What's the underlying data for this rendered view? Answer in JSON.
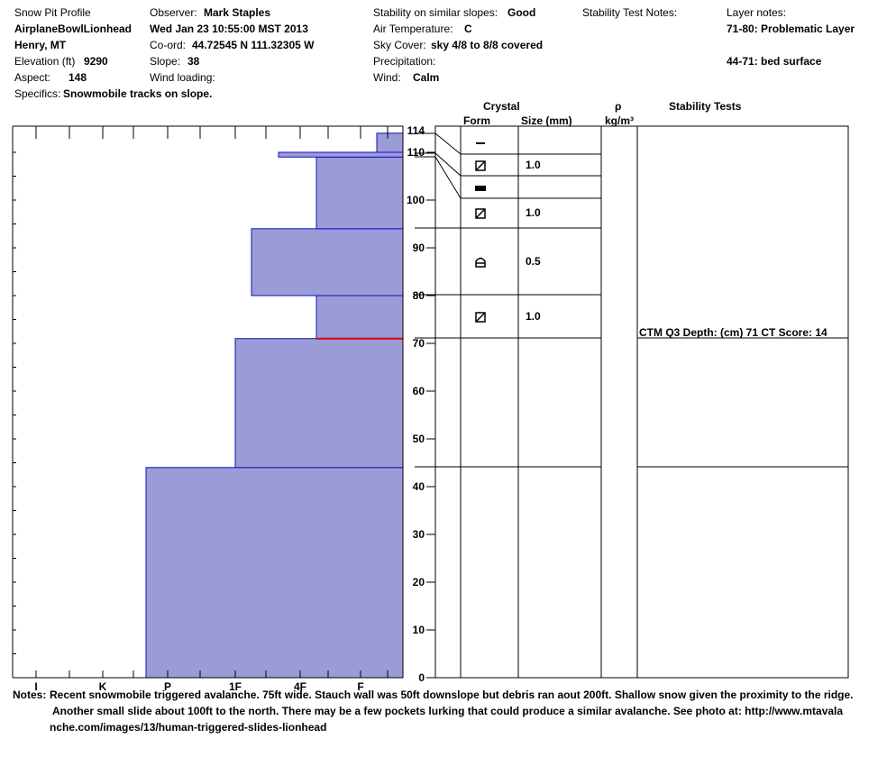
{
  "header": {
    "title": "Snow Pit Profile",
    "location_name": "AirplaneBowlLionhead",
    "region": "Henry, MT",
    "elevation_label": "Elevation (ft)",
    "elevation": "9290",
    "aspect_label": "Aspect:",
    "aspect": "148",
    "specifics_label": "Specifics:",
    "specifics": "Snowmobile tracks on slope.",
    "observer_label": "Observer:",
    "observer": "Mark Staples",
    "datetime": "Wed Jan 23 10:55:00 MST 2013",
    "coord_label": "Co-ord:",
    "coord": "44.72545 N 111.32305 W",
    "slope_label": "Slope:",
    "slope": "38",
    "wind_loading_label": "Wind loading:",
    "wind_loading": "",
    "stability_label": "Stability on similar slopes:",
    "stability": "Good",
    "air_temp_label": "Air Temperature:",
    "air_temp": "C",
    "sky_label": "Sky Cover:",
    "sky": "sky 4/8 to 8/8 covered",
    "precip_label": "Precipitation:",
    "precip": "",
    "wind_label": "Wind:",
    "wind": "Calm",
    "stability_notes_label": "Stability Test Notes:",
    "layer_notes_label": "Layer notes:",
    "layer_note_1": "71-80: Problematic Layer",
    "layer_note_2": "44-71: bed surface"
  },
  "columns": {
    "crystal": "Crystal",
    "form": "Form",
    "size": "Size (mm)",
    "rho": "ρ",
    "density_unit": "kg/m³",
    "stability_tests": "Stability Tests"
  },
  "stability_test": "CTM Q3 Depth: (cm) 71 CT Score: 14",
  "notes": {
    "label": "Notes:",
    "line1": "Recent snowmobile triggered avalanche. 75ft wide. Stauch wall was 50ft downslope but debris ran aout 200ft.  Shallow snow given the proximity to the ridge.",
    "line2": "Another small slide about 100ft to the north. There may be a few pockets lurking that could produce a similar avalanche. See photo at: http://www.mtavala",
    "line3": "nche.com/images/13/human-triggered-slides-lionhead"
  },
  "chart_data": {
    "type": "bar",
    "orientation": "horizontal-profile",
    "title": "Snow Pit Profile",
    "y_axis": {
      "label": "",
      "range": [
        0,
        114
      ],
      "ticks": [
        0,
        10,
        20,
        30,
        40,
        50,
        60,
        70,
        80,
        90,
        100,
        110,
        114
      ]
    },
    "x_axis": {
      "categories": [
        "I",
        "K",
        "P",
        "1F",
        "4F",
        "F"
      ],
      "direction": "reversed"
    },
    "hardness_layers": [
      {
        "bottom": 0,
        "top": 44,
        "hardness": "P+"
      },
      {
        "bottom": 44,
        "top": 71,
        "hardness": "1F"
      },
      {
        "bottom": 71,
        "top": 80,
        "hardness": "4F-"
      },
      {
        "bottom": 80,
        "top": 94,
        "hardness": "1F-"
      },
      {
        "bottom": 94,
        "top": 109,
        "hardness": "4F-"
      },
      {
        "bottom": 109,
        "top": 110,
        "hardness": "4F+"
      },
      {
        "bottom": 110,
        "top": 114,
        "hardness": "F-"
      }
    ],
    "problem_layer_depth": 71,
    "crystal_layers": [
      {
        "top": 114,
        "bottom": 110,
        "form": "new-snow",
        "size": ""
      },
      {
        "top": 110,
        "bottom": 105,
        "form": "faceted",
        "size": "1.0"
      },
      {
        "top": 105,
        "bottom": 100,
        "form": "melt-freeze-crust",
        "size": ""
      },
      {
        "top": 100,
        "bottom": 94,
        "form": "faceted",
        "size": "1.0"
      },
      {
        "top": 94,
        "bottom": 80,
        "form": "depth-hoar",
        "size": "0.5"
      },
      {
        "top": 80,
        "bottom": 71,
        "form": "faceted",
        "size": "1.0"
      },
      {
        "top": 71,
        "bottom": 44,
        "form": "",
        "size": ""
      },
      {
        "top": 44,
        "bottom": 0,
        "form": "",
        "size": ""
      }
    ],
    "colors": {
      "fill": "#9b9bd8",
      "edge": "#1010c0",
      "problem": "#e00000"
    }
  }
}
